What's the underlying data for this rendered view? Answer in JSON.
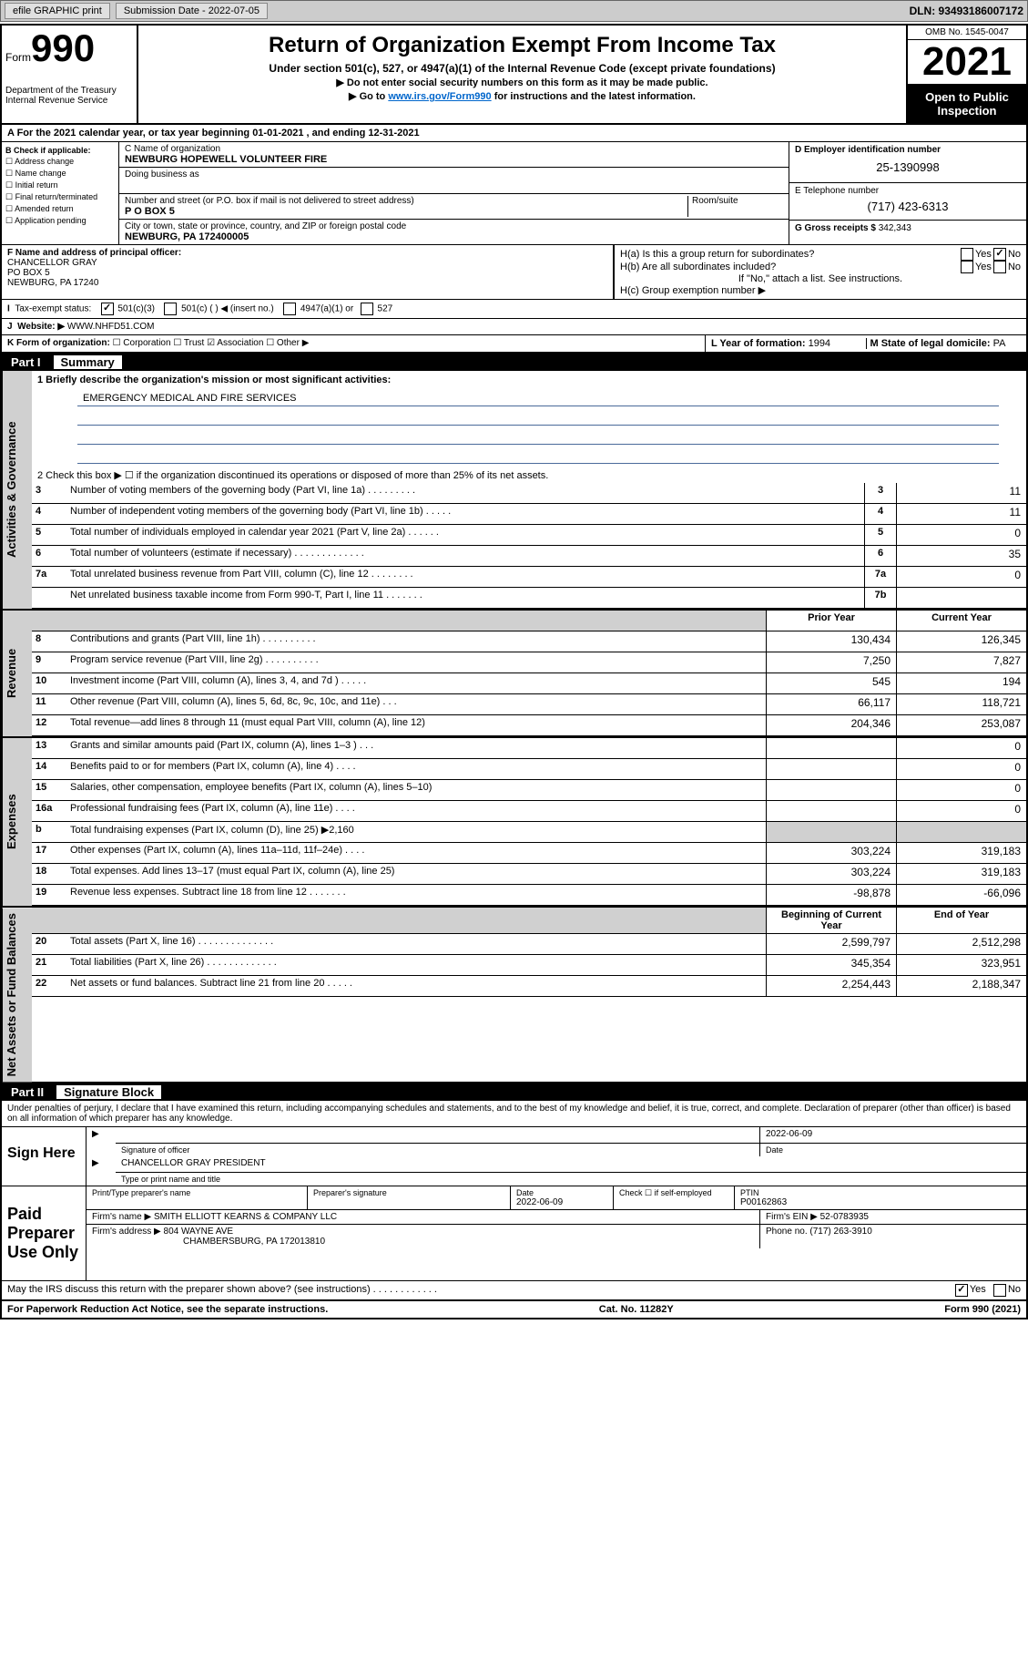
{
  "toolbar": {
    "efile_label": "efile GRAPHIC print",
    "submission_label": "Submission Date - 2022-07-05",
    "dln_label": "DLN: 93493186007172"
  },
  "header": {
    "form_prefix": "Form",
    "form_number": "990",
    "dept": "Department of the Treasury",
    "irs": "Internal Revenue Service",
    "title": "Return of Organization Exempt From Income Tax",
    "subtitle": "Under section 501(c), 527, or 4947(a)(1) of the Internal Revenue Code (except private foundations)",
    "note1": "▶ Do not enter social security numbers on this form as it may be made public.",
    "note2_pre": "▶ Go to ",
    "note2_link": "www.irs.gov/Form990",
    "note2_post": " for instructions and the latest information.",
    "omb": "OMB No. 1545-0047",
    "year": "2021",
    "open_public": "Open to Public Inspection"
  },
  "rowA": "A For the 2021 calendar year, or tax year beginning 01-01-2021   , and ending 12-31-2021",
  "entity": {
    "checkB_label": "B Check if applicable:",
    "checks": [
      "☐ Address change",
      "☐ Name change",
      "☐ Initial return",
      "☐ Final return/terminated",
      "☐ Amended return",
      "☐ Application pending"
    ],
    "nameC_label": "C Name of organization",
    "nameC": "NEWBURG HOPEWELL VOLUNTEER FIRE",
    "dba_label": "Doing business as",
    "street_label": "Number and street (or P.O. box if mail is not delivered to street address)",
    "room_label": "Room/suite",
    "street": "P O BOX 5",
    "city_label": "City or town, state or province, country, and ZIP or foreign postal code",
    "city": "NEWBURG, PA  172400005",
    "einD_label": "D Employer identification number",
    "einD": "25-1390998",
    "phoneE_label": "E Telephone number",
    "phoneE": "(717) 423-6313",
    "grossG_label": "G Gross receipts $",
    "grossG": "342,343"
  },
  "rowF": {
    "label": "F Name and address of principal officer:",
    "name": "CHANCELLOR GRAY",
    "addr1": "PO BOX 5",
    "addr2": "NEWBURG, PA  17240",
    "ha_label": "H(a)  Is this a group return for subordinates?",
    "hb_label": "H(b)  Are all subordinates included?",
    "hb_note": "If \"No,\" attach a list. See instructions.",
    "hc_label": "H(c)  Group exemption number ▶",
    "yes": "Yes",
    "no": "No"
  },
  "rowI": {
    "label": "Tax-exempt status:",
    "opt1": "501(c)(3)",
    "opt2": "501(c) (   ) ◀ (insert no.)",
    "opt3": "4947(a)(1) or",
    "opt4": "527"
  },
  "rowJ": {
    "label": "Website: ▶",
    "value": "WWW.NHFD51.COM"
  },
  "rowK": {
    "label": "K Form of organization:",
    "opts": "☐ Corporation   ☐ Trust   ☑ Association   ☐ Other ▶",
    "yearL_label": "L Year of formation:",
    "yearL": "1994",
    "stateM_label": "M State of legal domicile:",
    "stateM": "PA"
  },
  "partI": {
    "label": "Part I",
    "title": "Summary",
    "line1_label": "1   Briefly describe the organization's mission or most significant activities:",
    "line1_text": "EMERGENCY MEDICAL AND FIRE SERVICES",
    "line2": "2   Check this box ▶ ☐  if the organization discontinued its operations or disposed of more than 25% of its net assets.",
    "gov_label": "Activities & Governance",
    "rev_label": "Revenue",
    "exp_label": "Expenses",
    "net_label": "Net Assets or Fund Balances",
    "prior_header": "Prior Year",
    "current_header": "Current Year",
    "begin_header": "Beginning of Current Year",
    "end_header": "End of Year",
    "lines_gov": [
      {
        "n": "3",
        "d": "Number of voting members of the governing body (Part VI, line 1a)  .   .   .   .   .   .   .   .   .",
        "b": "3",
        "v": "11"
      },
      {
        "n": "4",
        "d": "Number of independent voting members of the governing body (Part VI, line 1b)  .   .   .   .   .",
        "b": "4",
        "v": "11"
      },
      {
        "n": "5",
        "d": "Total number of individuals employed in calendar year 2021 (Part V, line 2a)  .   .   .   .   .   .",
        "b": "5",
        "v": "0"
      },
      {
        "n": "6",
        "d": "Total number of volunteers (estimate if necessary)  .   .   .   .   .   .   .   .   .   .   .   .   .",
        "b": "6",
        "v": "35"
      },
      {
        "n": "7a",
        "d": "Total unrelated business revenue from Part VIII, column (C), line 12  .   .   .   .   .   .   .   .",
        "b": "7a",
        "v": "0"
      },
      {
        "n": "",
        "d": "Net unrelated business taxable income from Form 990-T, Part I, line 11  .   .   .   .   .   .   .",
        "b": "7b",
        "v": ""
      }
    ],
    "lines_rev": [
      {
        "n": "8",
        "d": "Contributions and grants (Part VIII, line 1h)  .   .   .   .   .   .   .   .   .   .",
        "p": "130,434",
        "c": "126,345"
      },
      {
        "n": "9",
        "d": "Program service revenue (Part VIII, line 2g)  .   .   .   .   .   .   .   .   .   .",
        "p": "7,250",
        "c": "7,827"
      },
      {
        "n": "10",
        "d": "Investment income (Part VIII, column (A), lines 3, 4, and 7d )  .   .   .   .   .",
        "p": "545",
        "c": "194"
      },
      {
        "n": "11",
        "d": "Other revenue (Part VIII, column (A), lines 5, 6d, 8c, 9c, 10c, and 11e)  .   .   .",
        "p": "66,117",
        "c": "118,721"
      },
      {
        "n": "12",
        "d": "Total revenue—add lines 8 through 11 (must equal Part VIII, column (A), line 12)",
        "p": "204,346",
        "c": "253,087"
      }
    ],
    "lines_exp": [
      {
        "n": "13",
        "d": "Grants and similar amounts paid (Part IX, column (A), lines 1–3 )  .   .   .",
        "p": "",
        "c": "0"
      },
      {
        "n": "14",
        "d": "Benefits paid to or for members (Part IX, column (A), line 4)  .   .   .   .",
        "p": "",
        "c": "0"
      },
      {
        "n": "15",
        "d": "Salaries, other compensation, employee benefits (Part IX, column (A), lines 5–10)",
        "p": "",
        "c": "0"
      },
      {
        "n": "16a",
        "d": "Professional fundraising fees (Part IX, column (A), line 11e)  .   .   .   .",
        "p": "",
        "c": "0"
      },
      {
        "n": "b",
        "d": "Total fundraising expenses (Part IX, column (D), line 25) ▶2,160",
        "p": "shade",
        "c": "shade"
      },
      {
        "n": "17",
        "d": "Other expenses (Part IX, column (A), lines 11a–11d, 11f–24e)  .   .   .   .",
        "p": "303,224",
        "c": "319,183"
      },
      {
        "n": "18",
        "d": "Total expenses. Add lines 13–17 (must equal Part IX, column (A), line 25)",
        "p": "303,224",
        "c": "319,183"
      },
      {
        "n": "19",
        "d": "Revenue less expenses. Subtract line 18 from line 12  .   .   .   .   .   .   .",
        "p": "-98,878",
        "c": "-66,096"
      }
    ],
    "lines_net": [
      {
        "n": "20",
        "d": "Total assets (Part X, line 16)  .   .   .   .   .   .   .   .   .   .   .   .   .   .",
        "p": "2,599,797",
        "c": "2,512,298"
      },
      {
        "n": "21",
        "d": "Total liabilities (Part X, line 26)  .   .   .   .   .   .   .   .   .   .   .   .   .",
        "p": "345,354",
        "c": "323,951"
      },
      {
        "n": "22",
        "d": "Net assets or fund balances. Subtract line 21 from line 20  .   .   .   .   .",
        "p": "2,254,443",
        "c": "2,188,347"
      }
    ]
  },
  "partII": {
    "label": "Part II",
    "title": "Signature Block",
    "penalties": "Under penalties of perjury, I declare that I have examined this return, including accompanying schedules and statements, and to the best of my knowledge and belief, it is true, correct, and complete. Declaration of preparer (other than officer) is based on all information of which preparer has any knowledge.",
    "sign_here": "Sign Here",
    "sig_officer_label": "Signature of officer",
    "sig_date": "2022-06-09",
    "date_label": "Date",
    "officer_name": "CHANCELLOR GRAY PRESIDENT",
    "officer_name_label": "Type or print name and title",
    "paid_label": "Paid Preparer Use Only",
    "prep_name_label": "Print/Type preparer's name",
    "prep_sig_label": "Preparer's signature",
    "prep_date_label": "Date",
    "prep_date": "2022-06-09",
    "check_self": "Check ☐ if self-employed",
    "ptin_label": "PTIN",
    "ptin": "P00162863",
    "firm_name_label": "Firm's name     ▶",
    "firm_name": "SMITH ELLIOTT KEARNS & COMPANY LLC",
    "firm_ein_label": "Firm's EIN ▶",
    "firm_ein": "52-0783935",
    "firm_addr_label": "Firm's address ▶",
    "firm_addr1": "804 WAYNE AVE",
    "firm_addr2": "CHAMBERSBURG, PA  172013810",
    "firm_phone_label": "Phone no.",
    "firm_phone": "(717) 263-3910",
    "may_irs": "May the IRS discuss this return with the preparer shown above? (see instructions)  .   .   .   .   .   .   .   .   .   .   .   .",
    "yes": "Yes",
    "no": "No"
  },
  "footer": {
    "paperwork": "For Paperwork Reduction Act Notice, see the separate instructions.",
    "cat": "Cat. No. 11282Y",
    "form": "Form 990 (2021)"
  },
  "colors": {
    "link": "#0066cc",
    "shade": "#d0d0d0",
    "ruler": "#4a6a9a"
  }
}
